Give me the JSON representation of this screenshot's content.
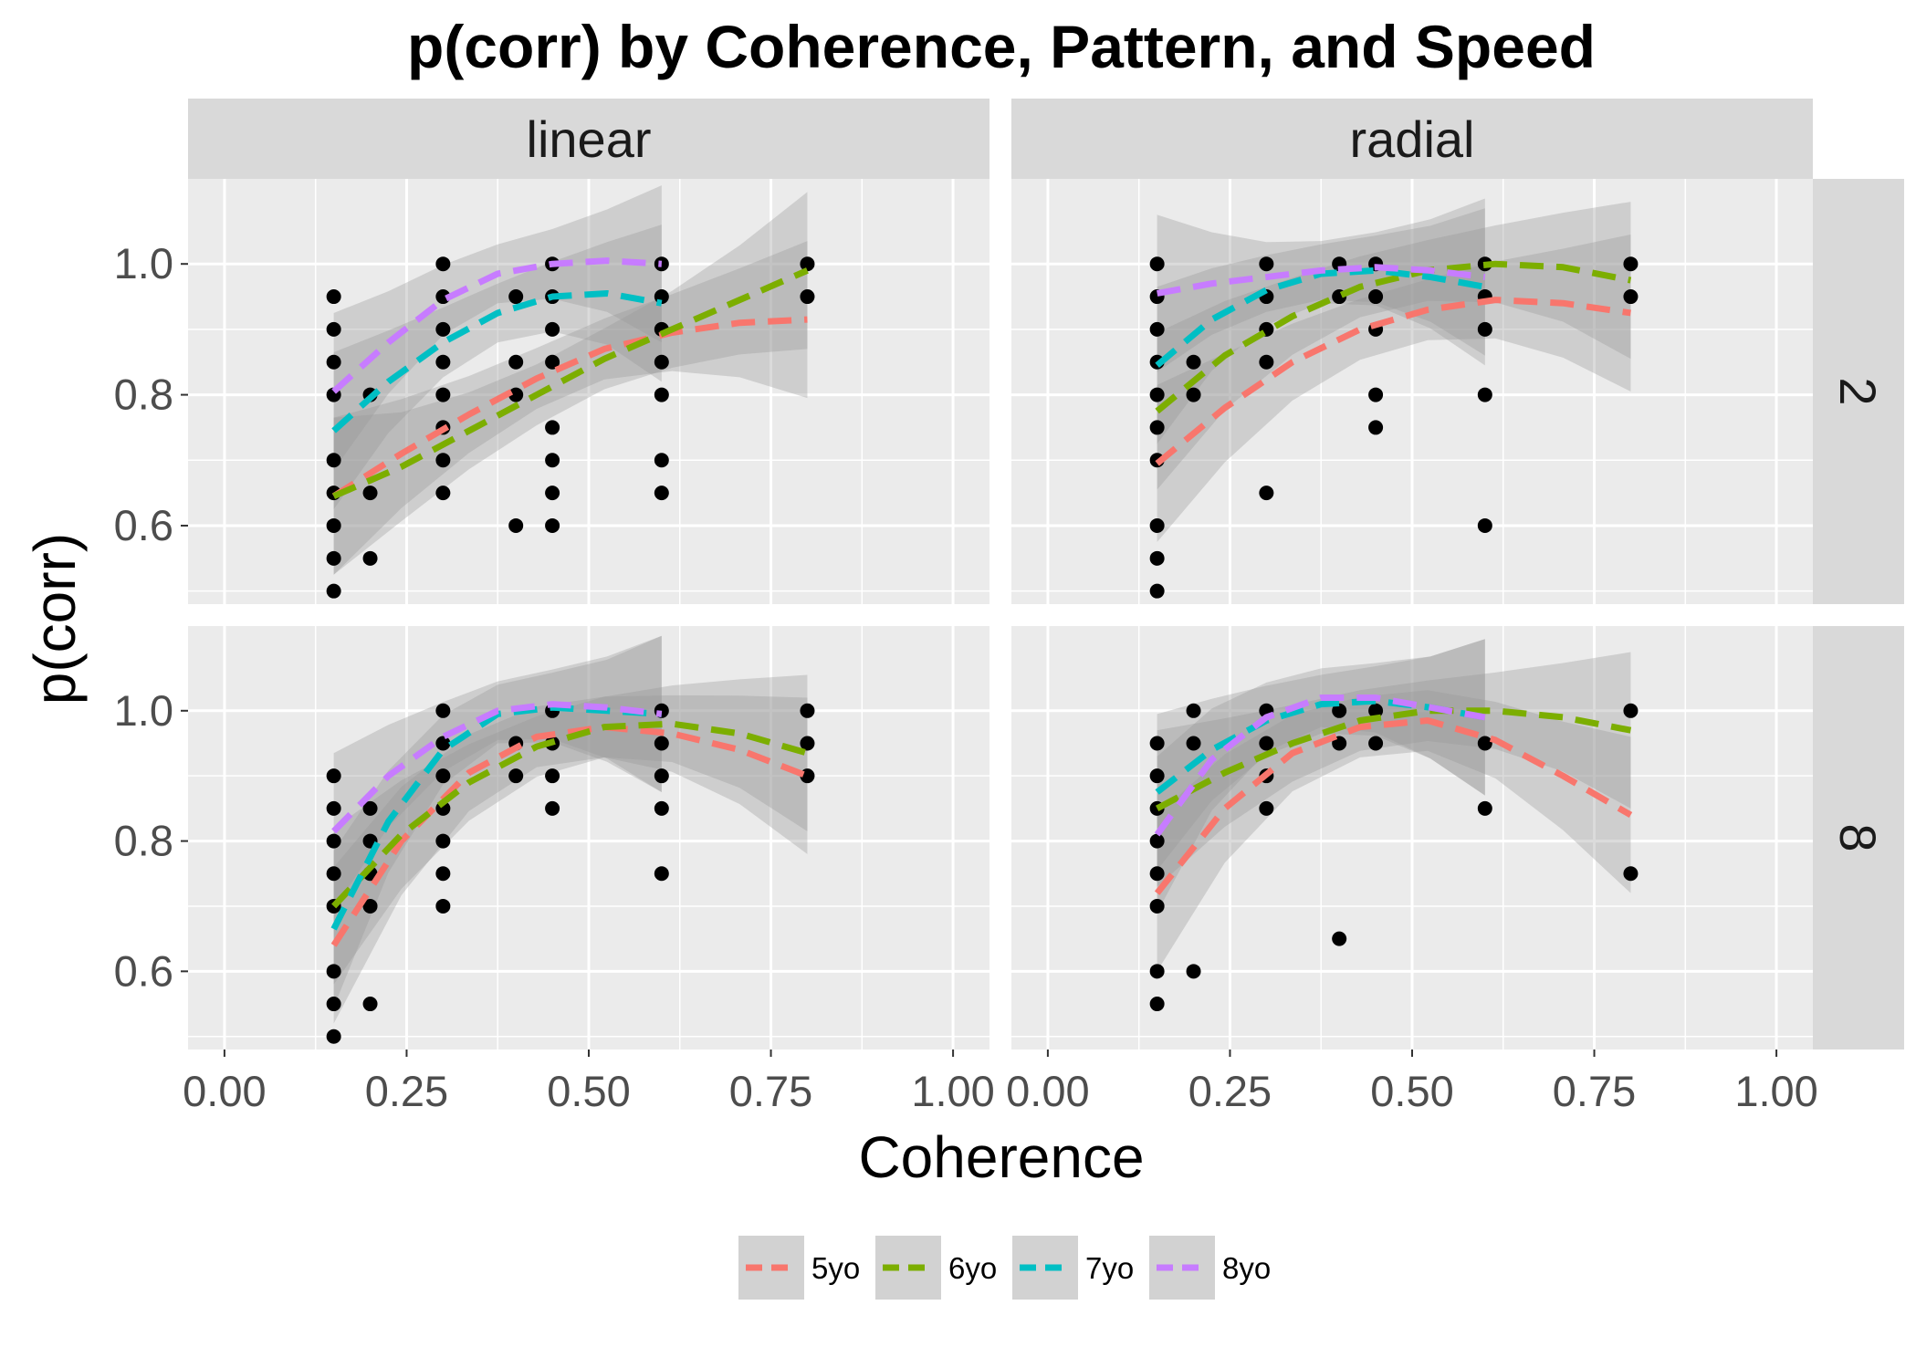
{
  "chart_data": {
    "type": "scatter",
    "title": "p(corr) by Coherence, Pattern, and Speed",
    "xlabel": "Coherence",
    "ylabel": "p(corr)",
    "xlim": [
      -0.05,
      1.05
    ],
    "ylim": [
      0.48,
      1.13
    ],
    "x_ticks": [
      {
        "value": 0.0,
        "label": "0.00"
      },
      {
        "value": 0.25,
        "label": "0.25"
      },
      {
        "value": 0.5,
        "label": "0.50"
      },
      {
        "value": 0.75,
        "label": "0.75"
      },
      {
        "value": 1.0,
        "label": "1.00"
      }
    ],
    "y_ticks": [
      {
        "value": 0.6,
        "label": "0.6"
      },
      {
        "value": 0.8,
        "label": "0.8"
      },
      {
        "value": 1.0,
        "label": "1.0"
      }
    ],
    "columns": [
      "linear",
      "radial"
    ],
    "rows": [
      "2",
      "8"
    ],
    "colors": {
      "5yo": "#F8766D",
      "6yo": "#7CAE00",
      "7yo": "#00BFC4",
      "8yo": "#C77CFF"
    },
    "legend": {
      "position": "bottom",
      "entries": [
        "5yo",
        "6yo",
        "7yo",
        "8yo"
      ]
    },
    "panels": [
      {
        "pattern": "linear",
        "speed": "2",
        "points": [
          [
            0.15,
            0.95
          ],
          [
            0.15,
            0.9
          ],
          [
            0.15,
            0.85
          ],
          [
            0.15,
            0.8
          ],
          [
            0.15,
            0.7
          ],
          [
            0.15,
            0.65
          ],
          [
            0.15,
            0.6
          ],
          [
            0.15,
            0.55
          ],
          [
            0.15,
            0.5
          ],
          [
            0.2,
            0.8
          ],
          [
            0.2,
            0.65
          ],
          [
            0.2,
            0.55
          ],
          [
            0.3,
            1.0
          ],
          [
            0.3,
            0.95
          ],
          [
            0.3,
            0.9
          ],
          [
            0.3,
            0.85
          ],
          [
            0.3,
            0.8
          ],
          [
            0.3,
            0.75
          ],
          [
            0.3,
            0.7
          ],
          [
            0.3,
            0.65
          ],
          [
            0.4,
            0.95
          ],
          [
            0.4,
            0.85
          ],
          [
            0.4,
            0.8
          ],
          [
            0.4,
            0.6
          ],
          [
            0.45,
            1.0
          ],
          [
            0.45,
            0.95
          ],
          [
            0.45,
            0.9
          ],
          [
            0.45,
            0.85
          ],
          [
            0.45,
            0.75
          ],
          [
            0.45,
            0.7
          ],
          [
            0.45,
            0.65
          ],
          [
            0.45,
            0.6
          ],
          [
            0.6,
            1.0
          ],
          [
            0.6,
            0.95
          ],
          [
            0.6,
            0.9
          ],
          [
            0.6,
            0.85
          ],
          [
            0.6,
            0.8
          ],
          [
            0.6,
            0.7
          ],
          [
            0.6,
            0.65
          ],
          [
            0.8,
            1.0
          ],
          [
            0.8,
            0.95
          ]
        ],
        "series": [
          {
            "name": "5yo",
            "x_range": [
              0.15,
              0.8
            ],
            "y": [
              0.645,
              0.71,
              0.77,
              0.825,
              0.87,
              0.895,
              0.91,
              0.915
            ]
          },
          {
            "name": "6yo",
            "x_range": [
              0.15,
              0.8
            ],
            "y": [
              0.645,
              0.69,
              0.745,
              0.8,
              0.855,
              0.9,
              0.945,
              0.99
            ]
          },
          {
            "name": "7yo",
            "x_range": [
              0.15,
              0.6
            ],
            "y": [
              0.745,
              0.82,
              0.88,
              0.925,
              0.95,
              0.955,
              0.94
            ]
          },
          {
            "name": "8yo",
            "x_range": [
              0.15,
              0.6
            ],
            "y": [
              0.805,
              0.88,
              0.945,
              0.985,
              1.0,
              1.005,
              1.0
            ]
          }
        ]
      },
      {
        "pattern": "radial",
        "speed": "2",
        "points": [
          [
            0.15,
            1.0
          ],
          [
            0.15,
            0.95
          ],
          [
            0.15,
            0.9
          ],
          [
            0.15,
            0.85
          ],
          [
            0.15,
            0.8
          ],
          [
            0.15,
            0.75
          ],
          [
            0.15,
            0.7
          ],
          [
            0.15,
            0.6
          ],
          [
            0.15,
            0.55
          ],
          [
            0.15,
            0.5
          ],
          [
            0.2,
            0.85
          ],
          [
            0.2,
            0.8
          ],
          [
            0.3,
            1.0
          ],
          [
            0.3,
            0.95
          ],
          [
            0.3,
            0.9
          ],
          [
            0.3,
            0.85
          ],
          [
            0.3,
            0.65
          ],
          [
            0.4,
            1.0
          ],
          [
            0.4,
            0.95
          ],
          [
            0.45,
            1.0
          ],
          [
            0.45,
            0.95
          ],
          [
            0.45,
            0.9
          ],
          [
            0.45,
            0.8
          ],
          [
            0.45,
            0.75
          ],
          [
            0.6,
            1.0
          ],
          [
            0.6,
            0.95
          ],
          [
            0.6,
            0.9
          ],
          [
            0.6,
            0.8
          ],
          [
            0.6,
            0.6
          ],
          [
            0.8,
            1.0
          ],
          [
            0.8,
            0.95
          ]
        ],
        "series": [
          {
            "name": "5yo",
            "x_range": [
              0.15,
              0.8
            ],
            "y": [
              0.695,
              0.78,
              0.85,
              0.9,
              0.93,
              0.945,
              0.94,
              0.925
            ]
          },
          {
            "name": "6yo",
            "x_range": [
              0.15,
              0.8
            ],
            "y": [
              0.775,
              0.86,
              0.92,
              0.965,
              0.99,
              1.0,
              0.995,
              0.975
            ]
          },
          {
            "name": "7yo",
            "x_range": [
              0.15,
              0.6
            ],
            "y": [
              0.845,
              0.915,
              0.96,
              0.985,
              0.99,
              0.98,
              0.965
            ]
          },
          {
            "name": "8yo",
            "x_range": [
              0.15,
              0.6
            ],
            "y": [
              0.955,
              0.97,
              0.98,
              0.99,
              0.995,
              0.99,
              0.98
            ]
          }
        ]
      },
      {
        "pattern": "linear",
        "speed": "8",
        "points": [
          [
            0.15,
            0.9
          ],
          [
            0.15,
            0.85
          ],
          [
            0.15,
            0.8
          ],
          [
            0.15,
            0.75
          ],
          [
            0.15,
            0.7
          ],
          [
            0.15,
            0.6
          ],
          [
            0.15,
            0.55
          ],
          [
            0.15,
            0.5
          ],
          [
            0.2,
            0.85
          ],
          [
            0.2,
            0.8
          ],
          [
            0.2,
            0.75
          ],
          [
            0.2,
            0.7
          ],
          [
            0.2,
            0.55
          ],
          [
            0.3,
            1.0
          ],
          [
            0.3,
            0.95
          ],
          [
            0.3,
            0.9
          ],
          [
            0.3,
            0.85
          ],
          [
            0.3,
            0.8
          ],
          [
            0.3,
            0.75
          ],
          [
            0.3,
            0.7
          ],
          [
            0.4,
            0.95
          ],
          [
            0.4,
            0.9
          ],
          [
            0.45,
            1.0
          ],
          [
            0.45,
            0.95
          ],
          [
            0.45,
            0.9
          ],
          [
            0.45,
            0.85
          ],
          [
            0.6,
            1.0
          ],
          [
            0.6,
            0.95
          ],
          [
            0.6,
            0.9
          ],
          [
            0.6,
            0.85
          ],
          [
            0.6,
            0.75
          ],
          [
            0.8,
            1.0
          ],
          [
            0.8,
            0.95
          ],
          [
            0.8,
            0.9
          ]
        ],
        "series": [
          {
            "name": "5yo",
            "x_range": [
              0.15,
              0.8
            ],
            "y": [
              0.64,
              0.8,
              0.905,
              0.96,
              0.975,
              0.965,
              0.94,
              0.9
            ]
          },
          {
            "name": "6yo",
            "x_range": [
              0.15,
              0.8
            ],
            "y": [
              0.7,
              0.81,
              0.89,
              0.945,
              0.975,
              0.98,
              0.965,
              0.935
            ]
          },
          {
            "name": "7yo",
            "x_range": [
              0.15,
              0.6
            ],
            "y": [
              0.665,
              0.83,
              0.94,
              0.995,
              1.005,
              1.0,
              0.995
            ]
          },
          {
            "name": "8yo",
            "x_range": [
              0.15,
              0.6
            ],
            "y": [
              0.815,
              0.9,
              0.96,
              1.0,
              1.01,
              1.005,
              0.995
            ]
          }
        ]
      },
      {
        "pattern": "radial",
        "speed": "8",
        "points": [
          [
            0.15,
            0.95
          ],
          [
            0.15,
            0.9
          ],
          [
            0.15,
            0.85
          ],
          [
            0.15,
            0.8
          ],
          [
            0.15,
            0.75
          ],
          [
            0.15,
            0.7
          ],
          [
            0.15,
            0.6
          ],
          [
            0.15,
            0.55
          ],
          [
            0.2,
            1.0
          ],
          [
            0.2,
            0.95
          ],
          [
            0.2,
            0.6
          ],
          [
            0.3,
            1.0
          ],
          [
            0.3,
            0.95
          ],
          [
            0.3,
            0.9
          ],
          [
            0.3,
            0.85
          ],
          [
            0.4,
            1.0
          ],
          [
            0.4,
            0.95
          ],
          [
            0.4,
            0.65
          ],
          [
            0.45,
            1.0
          ],
          [
            0.45,
            0.95
          ],
          [
            0.6,
            0.95
          ],
          [
            0.6,
            0.85
          ],
          [
            0.8,
            1.0
          ],
          [
            0.8,
            0.75
          ]
        ],
        "series": [
          {
            "name": "5yo",
            "x_range": [
              0.15,
              0.8
            ],
            "y": [
              0.72,
              0.85,
              0.935,
              0.975,
              0.985,
              0.955,
              0.9,
              0.84
            ]
          },
          {
            "name": "6yo",
            "x_range": [
              0.15,
              0.8
            ],
            "y": [
              0.85,
              0.905,
              0.95,
              0.985,
              1.0,
              1.0,
              0.99,
              0.97
            ]
          },
          {
            "name": "7yo",
            "x_range": [
              0.15,
              0.6
            ],
            "y": [
              0.875,
              0.94,
              0.985,
              1.01,
              1.015,
              1.005,
              0.99
            ]
          },
          {
            "name": "8yo",
            "x_range": [
              0.15,
              0.6
            ],
            "y": [
              0.81,
              0.925,
              0.99,
              1.02,
              1.02,
              1.005,
              0.99
            ]
          }
        ]
      }
    ]
  }
}
